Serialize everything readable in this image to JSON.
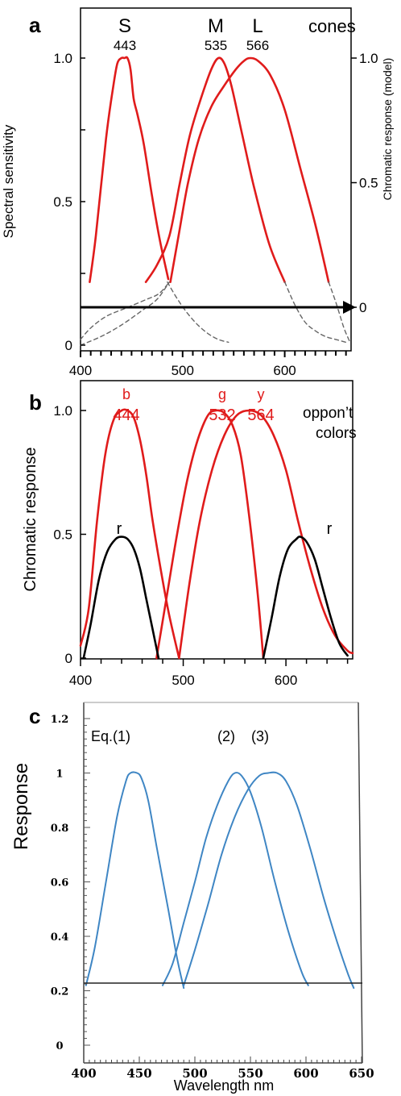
{
  "colors": {
    "curve_red": "#e01b1b",
    "curve_black": "#000000",
    "curve_blue": "#3f86c4",
    "dashed_gray": "#666666",
    "axis": "#000000"
  },
  "chart_data": [
    {
      "panel_label": "a",
      "type": "line",
      "xlim": [
        400,
        665
      ],
      "ylim": [
        0,
        1.15
      ],
      "right_ylim": [
        0,
        1.0
      ],
      "x_ticks": [
        "400",
        "500",
        "600"
      ],
      "y_ticks": [
        "0",
        "0.5",
        "1.0"
      ],
      "right_y_ticks": [
        "0",
        "0.5",
        "1.0"
      ],
      "ylabel": "Spectral sensitivity",
      "right_ylabel": "Chromatic response (model)",
      "legend_note": "cones",
      "baseline": 0.22,
      "peak_labels": [
        {
          "name": "S",
          "peak": "443"
        },
        {
          "name": "M",
          "peak": "535"
        },
        {
          "name": "L",
          "peak": "566"
        }
      ],
      "series": [
        {
          "name": "S",
          "style": "red",
          "x": [
            409,
            415,
            425,
            432,
            436,
            440,
            443,
            446,
            449,
            452,
            456,
            462,
            470,
            478,
            486
          ],
          "y": [
            0.22,
            0.38,
            0.72,
            0.9,
            0.98,
            1.0,
            1.0,
            1.0,
            0.96,
            0.86,
            0.8,
            0.7,
            0.52,
            0.36,
            0.23
          ]
        },
        {
          "name": "M",
          "style": "red",
          "x": [
            464,
            475,
            487,
            497,
            507,
            518,
            528,
            535,
            541,
            548,
            558,
            570,
            585,
            600
          ],
          "y": [
            0.22,
            0.28,
            0.38,
            0.56,
            0.73,
            0.86,
            0.96,
            1.0,
            0.98,
            0.9,
            0.74,
            0.55,
            0.35,
            0.22
          ]
        },
        {
          "name": "L",
          "style": "red",
          "x": [
            488,
            496,
            505,
            516,
            528,
            540,
            552,
            560,
            566,
            574,
            586,
            600,
            615,
            630,
            643
          ],
          "y": [
            0.22,
            0.38,
            0.56,
            0.72,
            0.83,
            0.9,
            0.96,
            0.99,
            1.0,
            0.99,
            0.94,
            0.82,
            0.62,
            0.42,
            0.22
          ]
        },
        {
          "name": "S-tail",
          "style": "dashed",
          "x": [
            485,
            495,
            505,
            515,
            525,
            535,
            545
          ],
          "y": [
            0.22,
            0.16,
            0.11,
            0.07,
            0.04,
            0.02,
            0.01
          ]
        },
        {
          "name": "M-left-tail",
          "style": "dashed",
          "x": [
            400,
            420,
            440,
            460,
            475,
            487
          ],
          "y": [
            0.0,
            0.03,
            0.07,
            0.12,
            0.16,
            0.22
          ]
        },
        {
          "name": "M-right-tail",
          "style": "dashed",
          "x": [
            400,
            410,
            425,
            445,
            465,
            477,
            487
          ],
          "y": [
            0.02,
            0.06,
            0.1,
            0.13,
            0.16,
            0.18,
            0.22
          ]
        },
        {
          "name": "L-tail",
          "style": "dashed",
          "x": [
            600,
            610,
            620,
            630,
            640,
            650,
            660
          ],
          "y": [
            0.22,
            0.14,
            0.08,
            0.05,
            0.03,
            0.02,
            0.01
          ]
        },
        {
          "name": "L-right-tail",
          "style": "dashed",
          "x": [
            643,
            650,
            658,
            664
          ],
          "y": [
            0.22,
            0.15,
            0.06,
            0.01
          ]
        }
      ]
    },
    {
      "panel_label": "b",
      "type": "line",
      "xlim": [
        400,
        665
      ],
      "ylim": [
        0,
        1.15
      ],
      "x_ticks": [
        "400",
        "500",
        "600"
      ],
      "y_ticks": [
        "0",
        "0.5",
        "1.0"
      ],
      "ylabel": "Chromatic response",
      "legend_note": [
        "oppon’t",
        "colors"
      ],
      "peak_labels": [
        {
          "name": "b",
          "peak": "444",
          "color": "#e01b1b"
        },
        {
          "name": "g",
          "peak": "532",
          "color": "#e01b1b"
        },
        {
          "name": "y",
          "peak": "564",
          "color": "#e01b1b"
        }
      ],
      "r_labels": [
        "r",
        "r"
      ],
      "series": [
        {
          "name": "b",
          "style": "red",
          "x": [
            400,
            408,
            416,
            424,
            432,
            440,
            446,
            452,
            458,
            464,
            470,
            478,
            486,
            496
          ],
          "y": [
            0.05,
            0.2,
            0.55,
            0.82,
            0.96,
            1.0,
            1.0,
            0.97,
            0.88,
            0.74,
            0.56,
            0.36,
            0.18,
            0.0
          ]
        },
        {
          "name": "g",
          "style": "red",
          "x": [
            474,
            484,
            494,
            504,
            514,
            524,
            532,
            540,
            548,
            556,
            564,
            572,
            578
          ],
          "y": [
            0.0,
            0.25,
            0.5,
            0.72,
            0.88,
            0.98,
            1.0,
            0.99,
            0.94,
            0.82,
            0.58,
            0.28,
            0.0
          ]
        },
        {
          "name": "y",
          "style": "red",
          "x": [
            496,
            506,
            516,
            528,
            540,
            552,
            564,
            576,
            588,
            600,
            612,
            624,
            636,
            648,
            660,
            665
          ],
          "y": [
            0.0,
            0.3,
            0.55,
            0.76,
            0.9,
            0.98,
            1.0,
            0.98,
            0.9,
            0.76,
            0.55,
            0.36,
            0.2,
            0.09,
            0.03,
            0.02
          ]
        },
        {
          "name": "r-left",
          "style": "black",
          "x": [
            403,
            410,
            418,
            426,
            434,
            440,
            446,
            452,
            458,
            464,
            470,
            476
          ],
          "y": [
            0.0,
            0.14,
            0.32,
            0.43,
            0.48,
            0.49,
            0.48,
            0.44,
            0.36,
            0.24,
            0.12,
            0.0
          ]
        },
        {
          "name": "r-right",
          "style": "black",
          "x": [
            578,
            586,
            594,
            602,
            610,
            614,
            620,
            628,
            636,
            644,
            652,
            660
          ],
          "y": [
            0.0,
            0.16,
            0.33,
            0.44,
            0.48,
            0.49,
            0.47,
            0.4,
            0.28,
            0.16,
            0.06,
            0.01
          ]
        }
      ]
    },
    {
      "panel_label": "c",
      "type": "line",
      "xlim": [
        400,
        650
      ],
      "ylim": [
        0,
        1.2
      ],
      "x_ticks": [
        "400",
        "450",
        "500",
        "550",
        "600",
        "650"
      ],
      "y_ticks": [
        "0",
        "0.2",
        "0.4",
        "0.6",
        "0.8",
        "1",
        "1.2"
      ],
      "xlabel": "Wavelength nm",
      "ylabel": "Response",
      "baseline": 0.22,
      "curve_labels": [
        "Eq.(1)",
        "(2)",
        "(3)"
      ],
      "series": [
        {
          "name": "Eq.(1)",
          "style": "blue",
          "x": [
            402,
            410,
            420,
            430,
            438,
            442,
            448,
            452,
            458,
            466,
            476,
            484,
            490
          ],
          "y": [
            0.22,
            0.36,
            0.6,
            0.84,
            0.97,
            1.0,
            1.0,
            0.98,
            0.9,
            0.72,
            0.5,
            0.32,
            0.21
          ]
        },
        {
          "name": "(2)",
          "style": "blue",
          "x": [
            471,
            480,
            490,
            500,
            510,
            520,
            530,
            536,
            542,
            550,
            560,
            572,
            584,
            596,
            602
          ],
          "y": [
            0.22,
            0.3,
            0.45,
            0.6,
            0.76,
            0.88,
            0.97,
            1.0,
            0.99,
            0.93,
            0.8,
            0.6,
            0.42,
            0.27,
            0.22
          ]
        },
        {
          "name": "(3)",
          "style": "blue",
          "x": [
            490,
            500,
            512,
            524,
            536,
            548,
            558,
            566,
            574,
            582,
            592,
            604,
            616,
            628,
            638,
            643
          ],
          "y": [
            0.22,
            0.35,
            0.52,
            0.7,
            0.84,
            0.94,
            0.99,
            1.0,
            1.0,
            0.97,
            0.88,
            0.72,
            0.54,
            0.38,
            0.26,
            0.21
          ]
        }
      ]
    }
  ]
}
